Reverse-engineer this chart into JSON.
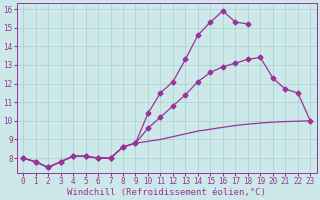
{
  "xlabel": "Windchill (Refroidissement éolien,°C)",
  "background_color": "#cce8e8",
  "grid_color": "#aacfcf",
  "line_color": "#993399",
  "xlim": [
    -0.5,
    23.5
  ],
  "ylim": [
    7.2,
    16.3
  ],
  "xticks": [
    0,
    1,
    2,
    3,
    4,
    5,
    6,
    7,
    8,
    9,
    10,
    11,
    12,
    13,
    14,
    15,
    16,
    17,
    18,
    19,
    20,
    21,
    22,
    23
  ],
  "yticks": [
    8,
    9,
    10,
    11,
    12,
    13,
    14,
    15,
    16
  ],
  "line1_x": [
    0,
    1,
    2,
    3,
    4,
    5,
    6,
    7,
    8,
    9,
    10,
    11,
    12,
    13,
    14,
    15,
    16,
    17,
    18
  ],
  "line1_y": [
    8.0,
    7.8,
    7.5,
    7.8,
    8.1,
    8.1,
    8.0,
    8.0,
    8.6,
    8.8,
    10.4,
    11.5,
    12.1,
    13.3,
    14.6,
    15.3,
    15.9,
    15.3,
    15.2
  ],
  "line2_x": [
    0,
    1,
    2,
    3,
    4,
    5,
    6,
    7,
    8,
    9,
    10,
    11,
    12,
    13,
    14,
    15,
    16,
    17,
    18,
    19,
    20,
    21,
    22,
    23
  ],
  "line2_y": [
    8.0,
    7.8,
    7.5,
    7.8,
    8.1,
    8.1,
    8.0,
    8.0,
    8.6,
    8.8,
    9.6,
    10.2,
    10.8,
    11.4,
    12.1,
    12.6,
    12.9,
    13.1,
    13.3,
    13.4,
    12.3,
    11.7,
    11.5,
    10.0
  ],
  "line3_x": [
    0,
    1,
    2,
    3,
    4,
    5,
    6,
    7,
    8,
    9,
    10,
    11,
    12,
    13,
    14,
    15,
    16,
    17,
    18,
    19,
    20,
    21,
    22,
    23
  ],
  "line3_y": [
    8.0,
    7.8,
    7.5,
    7.8,
    8.1,
    8.1,
    8.0,
    8.0,
    8.6,
    8.8,
    8.9,
    9.0,
    9.15,
    9.3,
    9.45,
    9.55,
    9.65,
    9.75,
    9.82,
    9.88,
    9.93,
    9.96,
    9.98,
    10.0
  ],
  "tick_fontsize": 5.5,
  "xlabel_fontsize": 6.5
}
